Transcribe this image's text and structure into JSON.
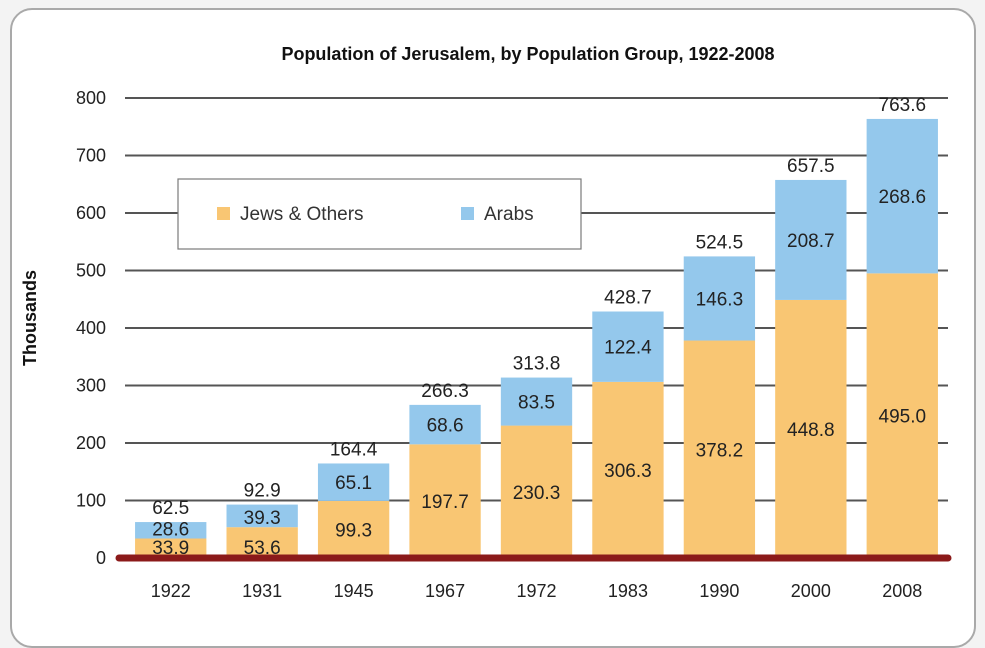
{
  "chart_data": {
    "type": "bar",
    "stacked": true,
    "title": "Population of Jerusalem, by Population Group, 1922-2008",
    "ylabel": "Thousands",
    "xlabel": "",
    "ylim": [
      0,
      800
    ],
    "yticks": [
      0,
      100,
      200,
      300,
      400,
      500,
      600,
      700,
      800
    ],
    "grid": true,
    "legend_position": "top-left",
    "categories": [
      "1922",
      "1931",
      "1945",
      "1967",
      "1972",
      "1983",
      "1990",
      "2000",
      "2008"
    ],
    "series": [
      {
        "name": "Jews & Others",
        "color": "#f9c673",
        "values": [
          33.9,
          53.6,
          99.3,
          197.7,
          230.3,
          306.3,
          378.2,
          448.8,
          495.0
        ],
        "labels": [
          "33.9",
          "53.6",
          "99.3",
          "197.7",
          "230.3",
          "306.3",
          "378.2",
          "448.8",
          "495.0"
        ]
      },
      {
        "name": "Arabs",
        "color": "#94c8ec",
        "values": [
          28.6,
          39.3,
          65.1,
          68.6,
          83.5,
          122.4,
          146.3,
          208.7,
          268.6
        ],
        "labels": [
          "28.6",
          "39.3",
          "65.1",
          "68.6",
          "83.5",
          "122.4",
          "146.3",
          "208.7",
          "268.6"
        ]
      }
    ],
    "totals": [
      62.5,
      92.9,
      164.4,
      266.3,
      313.8,
      428.7,
      524.5,
      657.5,
      763.6
    ],
    "total_labels": [
      "62.5",
      "92.9",
      "164.4",
      "266.3",
      "313.8",
      "428.7",
      "524.5",
      "657.5",
      "763.6"
    ],
    "baseline_color": "#8b1a1a"
  }
}
